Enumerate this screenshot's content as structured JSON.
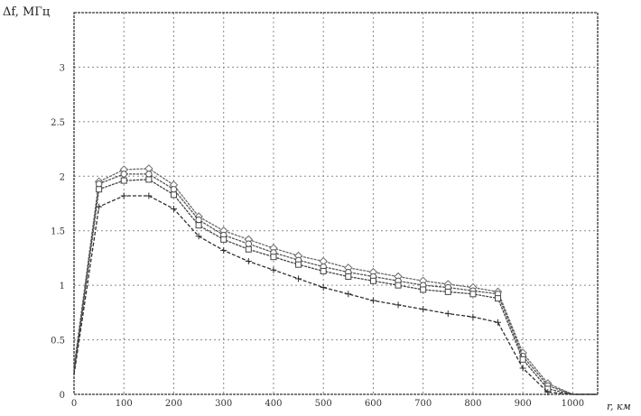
{
  "chart_data": {
    "type": "line",
    "xlabel": "r, км",
    "ylabel": "Δf, МГц",
    "xlim": [
      0,
      1050
    ],
    "ylim": [
      0,
      3.5
    ],
    "xticks": [
      "0",
      "100",
      "200",
      "300",
      "400",
      "500",
      "600",
      "700",
      "800",
      "900",
      "1000"
    ],
    "yticks": [
      "0",
      "0.5",
      "1",
      "1.5",
      "2",
      "2.5",
      "3"
    ],
    "grid": true,
    "series": [
      {
        "color": "#6a6a6a",
        "marker": "diamond",
        "x": [
          0,
          50,
          100,
          150,
          200,
          250,
          300,
          350,
          400,
          450,
          500,
          550,
          600,
          650,
          700,
          750,
          800,
          850,
          900,
          950,
          1000,
          1050
        ],
        "y": [
          0.25,
          1.95,
          2.06,
          2.07,
          1.92,
          1.63,
          1.5,
          1.42,
          1.34,
          1.27,
          1.22,
          1.16,
          1.12,
          1.08,
          1.04,
          1.01,
          0.98,
          0.94,
          0.38,
          0.1,
          0.0,
          0.0
        ]
      },
      {
        "color": "#555555",
        "marker": "circle",
        "x": [
          0,
          50,
          100,
          150,
          200,
          250,
          300,
          350,
          400,
          450,
          500,
          550,
          600,
          650,
          700,
          750,
          800,
          850,
          900,
          950,
          1000,
          1050
        ],
        "y": [
          0.22,
          1.93,
          2.02,
          2.02,
          1.88,
          1.6,
          1.46,
          1.38,
          1.3,
          1.23,
          1.17,
          1.12,
          1.08,
          1.04,
          1.0,
          0.98,
          0.95,
          0.92,
          0.35,
          0.08,
          0.0,
          0.0
        ]
      },
      {
        "color": "#444444",
        "marker": "square",
        "x": [
          0,
          50,
          100,
          150,
          200,
          250,
          300,
          350,
          400,
          450,
          500,
          550,
          600,
          650,
          700,
          750,
          800,
          850,
          900,
          950,
          1000,
          1050
        ],
        "y": [
          0.2,
          1.88,
          1.96,
          1.97,
          1.83,
          1.55,
          1.42,
          1.33,
          1.26,
          1.19,
          1.13,
          1.08,
          1.04,
          1.0,
          0.96,
          0.94,
          0.92,
          0.88,
          0.32,
          0.05,
          0.0,
          0.0
        ]
      },
      {
        "color": "#2f2f2f",
        "marker": "plus",
        "x": [
          0,
          50,
          100,
          150,
          200,
          250,
          300,
          350,
          400,
          450,
          500,
          550,
          600,
          650,
          700,
          750,
          800,
          850,
          900,
          950,
          1000,
          1050
        ],
        "y": [
          0.18,
          1.72,
          1.82,
          1.82,
          1.7,
          1.45,
          1.32,
          1.22,
          1.14,
          1.06,
          0.98,
          0.92,
          0.86,
          0.82,
          0.78,
          0.74,
          0.71,
          0.66,
          0.24,
          0.02,
          0.0,
          0.0
        ]
      }
    ]
  }
}
